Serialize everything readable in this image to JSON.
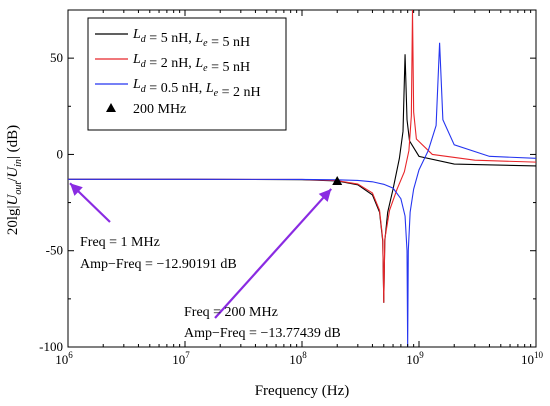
{
  "chart_data": {
    "type": "line",
    "xlabel": "Frequency (Hz)",
    "ylabel": "20lg|Uout/Uin| (dB)",
    "x_scale": "log",
    "xlim": [
      1000000,
      10000000000
    ],
    "ylim": [
      -100,
      75
    ],
    "x_tick_values": [
      1000000,
      10000000,
      100000000,
      1000000000,
      10000000000
    ],
    "x_tick_labels": [
      "10^6",
      "10^7",
      "10^8",
      "10^9",
      "10^10"
    ],
    "y_tick_values": [
      50,
      0,
      -50,
      -100
    ],
    "y_tick_labels": [
      "50",
      "0",
      "-50",
      "-100"
    ],
    "legend_position": "top-left",
    "series": [
      {
        "name": "Ld = 5 nH, Le = 5 nH",
        "color": "#000000",
        "x": [
          1000000,
          10000000,
          100000000,
          200000000,
          300000000,
          400000000,
          460000000,
          490000000,
          500000000,
          510000000,
          540000000,
          600000000,
          680000000,
          730000000,
          760000000,
          790000000,
          830000000,
          1000000000,
          2000000000,
          10000000000
        ],
        "y": [
          -12.9,
          -12.9,
          -13.1,
          -13.8,
          -15.8,
          -21,
          -30,
          -45,
          -77,
          -45,
          -30,
          -18,
          -2,
          12,
          52,
          18,
          7,
          -1,
          -5,
          -6
        ]
      },
      {
        "name": "Ld = 2 nH, Le = 5 nH",
        "color": "#e8262a",
        "x": [
          1000000,
          10000000,
          100000000,
          200000000,
          300000000,
          400000000,
          460000000,
          490000000,
          500000000,
          510000000,
          560000000,
          650000000,
          750000000,
          820000000,
          860000000,
          880000000,
          900000000,
          950000000,
          1300000000,
          3000000000,
          10000000000
        ],
        "y": [
          -12.9,
          -12.9,
          -13.0,
          -13.6,
          -15.4,
          -20,
          -29,
          -44,
          -77,
          -44,
          -29,
          -18,
          -9,
          2,
          20,
          75,
          22,
          8,
          0,
          -3,
          -4
        ]
      },
      {
        "name": "Ld = 0.5 nH, Le = 2 nH",
        "color": "#2535f0",
        "x": [
          1000000,
          10000000,
          100000000,
          200000000,
          300000000,
          400000000,
          500000000,
          600000000,
          700000000,
          760000000,
          790000000,
          800000000,
          810000000,
          840000000,
          900000000,
          1000000000,
          1200000000,
          1400000000,
          1500000000,
          1600000000,
          2000000000,
          4000000000,
          10000000000
        ],
        "y": [
          -12.9,
          -12.9,
          -13.0,
          -13.2,
          -13.5,
          -14.2,
          -15.5,
          -17.5,
          -23,
          -32,
          -50,
          -100,
          -50,
          -30,
          -18,
          -8,
          2,
          15,
          58,
          18,
          5,
          -1,
          -2
        ]
      }
    ],
    "marker_series": {
      "name": "200 MHz",
      "color": "#000000",
      "x": [
        200000000
      ],
      "y": [
        -13.77
      ]
    },
    "annotations": [
      {
        "line1": "Freq = 1 MHz",
        "line2": "Amp−Freq = −12.90191 dB",
        "point_x": 1000000,
        "point_y": -12.9,
        "color": "#8a2be2"
      },
      {
        "line1": "Freq = 200 MHz",
        "line2": "Amp−Freq = −13.77439 dB",
        "point_x": 200000000,
        "point_y": -13.77,
        "color": "#8a2be2"
      }
    ]
  }
}
